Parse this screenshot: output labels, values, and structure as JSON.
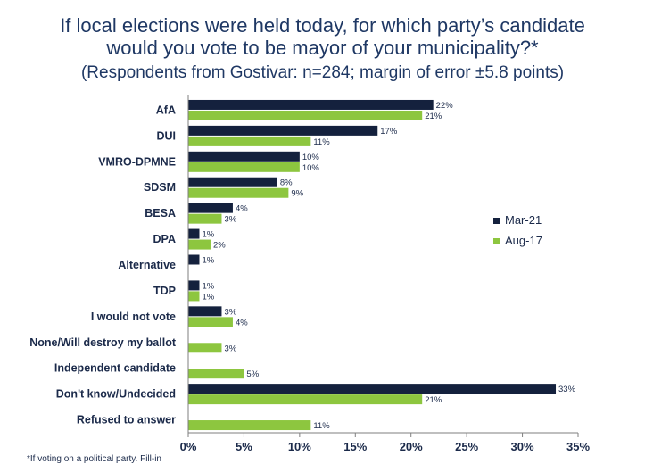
{
  "header": {
    "title_line1": "If local elections were held today, for which party’s candidate",
    "title_line2": "would you vote to be mayor of your municipality?*",
    "subtitle": "(Respondents from Gostivar: n=284; margin of error ±5.8 points)"
  },
  "footnote": "*If voting on a political party. Fill-in",
  "colors": {
    "Mar-21": "#14213d",
    "Aug-17": "#8dc63f"
  },
  "chart_data": {
    "type": "bar",
    "orientation": "horizontal",
    "categories": [
      "AfA",
      "DUI",
      "VMRO-DPMNE",
      "SDSM",
      "BESA",
      "DPA",
      "Alternative",
      "TDP",
      "I would not vote",
      "None/Will destroy my ballot",
      "Independent candidate",
      "Don't know/Undecided",
      "Refused to answer"
    ],
    "series": [
      {
        "name": "Mar-21",
        "values": [
          22,
          17,
          10,
          8,
          4,
          1,
          1,
          1,
          3,
          null,
          null,
          33,
          null
        ]
      },
      {
        "name": "Aug-17",
        "values": [
          21,
          11,
          10,
          9,
          3,
          2,
          null,
          1,
          4,
          3,
          5,
          21,
          11
        ]
      }
    ],
    "xlim": [
      0,
      35
    ],
    "xticks": [
      "0%",
      "5%",
      "10%",
      "15%",
      "20%",
      "25%",
      "30%",
      "35%"
    ],
    "value_suffix": "%",
    "legend_position": "right",
    "grid": false
  }
}
